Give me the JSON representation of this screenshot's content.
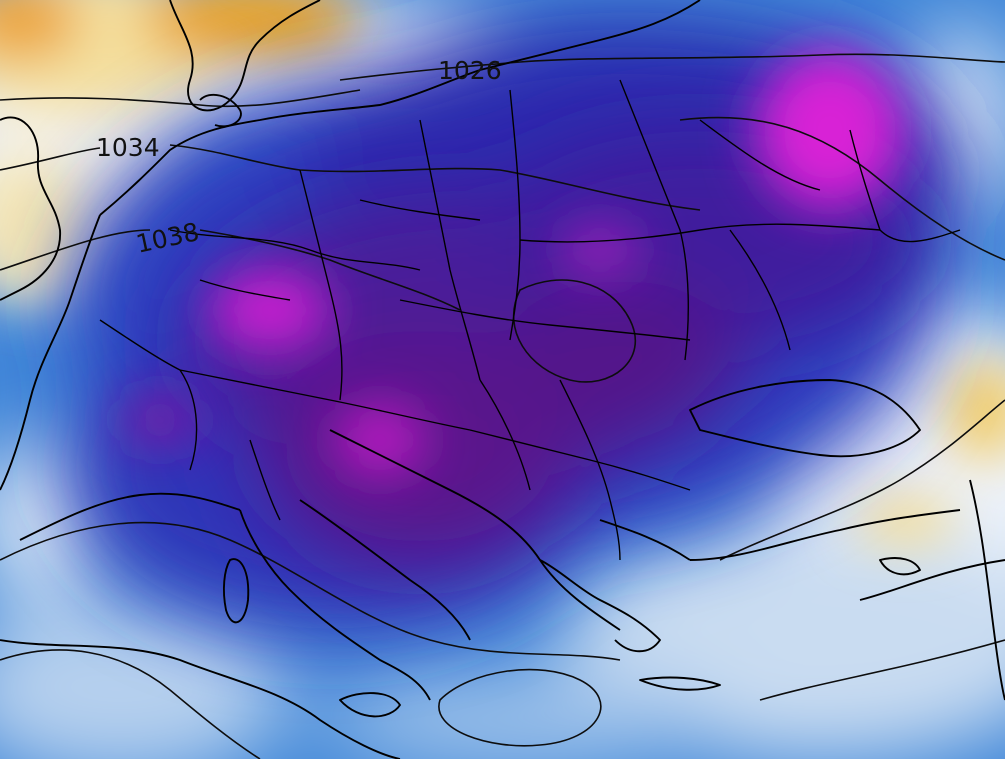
{
  "map": {
    "isobar_labels": [
      {
        "id": "1026",
        "text": "1026"
      },
      {
        "id": "1034",
        "text": "1034"
      },
      {
        "id": "1038",
        "text": "1038"
      }
    ],
    "colors": {
      "warm_deep": "#e79a1c",
      "warm_light": "#f6e2a6",
      "neutral": "#f2f5fb",
      "cold_light": "#bcd5ee",
      "cold_mid": "#2f6fd0",
      "cold_deep": "#2a1aa6",
      "cold_purple": "#5a1486",
      "cold_magenta": "#d21ed8",
      "lines": "#000000"
    }
  }
}
